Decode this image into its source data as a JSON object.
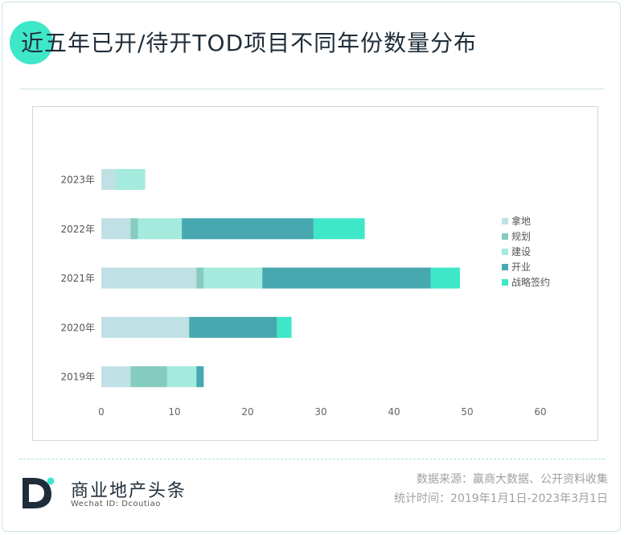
{
  "title": "近五年已开/待开TOD项目不同年份数量分布",
  "brand": {
    "name": "商业地产头条",
    "wechat": "Wechat ID: Dcoutiao"
  },
  "footer": {
    "source": "数据来源：赢商大数据、公开资料收集",
    "period": "统计时间：2019年1月1日-2023年3月1日"
  },
  "colors": {
    "accent": "#3ee7c8",
    "text_dark": "#1f2d3a"
  },
  "chart_data": {
    "type": "bar",
    "orientation": "horizontal",
    "stacked": true,
    "categories": [
      "2023年",
      "2022年",
      "2021年",
      "2020年",
      "2019年"
    ],
    "series": [
      {
        "name": "拿地",
        "color": "#bfe0e4",
        "values": [
          2,
          4,
          13,
          12,
          4
        ]
      },
      {
        "name": "规划",
        "color": "#86cbbf",
        "values": [
          0,
          1,
          1,
          0,
          5
        ]
      },
      {
        "name": "建设",
        "color": "#a4eadd",
        "values": [
          4,
          6,
          8,
          0,
          4
        ]
      },
      {
        "name": "开业",
        "color": "#48a8b0",
        "values": [
          0,
          18,
          23,
          12,
          1
        ]
      },
      {
        "name": "战略签约",
        "color": "#3ee7c8",
        "values": [
          0,
          7,
          4,
          2,
          0
        ]
      }
    ],
    "xlim": [
      0,
      60
    ],
    "xticks": [
      0,
      10,
      20,
      30,
      40,
      50,
      60
    ],
    "legend_position": "right",
    "grid": false
  }
}
